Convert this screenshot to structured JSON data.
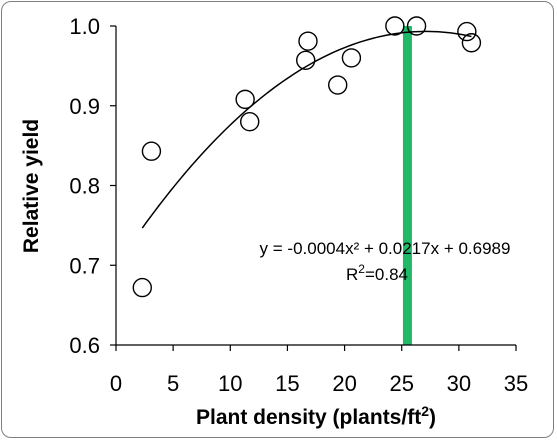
{
  "chart_data": {
    "type": "scatter",
    "xlabel": "Plant density (plants/ft²)",
    "xlabel_main": "Plant density (plants/ft",
    "xlabel_sup": "2",
    "xlabel_end": ")",
    "ylabel": "Relative yield",
    "xlim": [
      0,
      35
    ],
    "ylim": [
      0.6,
      1.0
    ],
    "x_ticks": [
      0,
      5,
      10,
      15,
      20,
      25,
      30,
      35
    ],
    "y_ticks": [
      0.6,
      0.7,
      0.8,
      0.9,
      1.0
    ],
    "x_tick_labels": [
      "0",
      "5",
      "10",
      "15",
      "20",
      "25",
      "30",
      "35"
    ],
    "y_tick_labels": [
      "0.6",
      "0.7",
      "0.8",
      "0.9",
      "1.0"
    ],
    "grid": false,
    "points": [
      {
        "x": 2.3,
        "y": 0.672
      },
      {
        "x": 3.1,
        "y": 0.843
      },
      {
        "x": 11.3,
        "y": 0.908
      },
      {
        "x": 11.7,
        "y": 0.88
      },
      {
        "x": 16.6,
        "y": 0.957
      },
      {
        "x": 16.8,
        "y": 0.981
      },
      {
        "x": 19.4,
        "y": 0.926
      },
      {
        "x": 20.6,
        "y": 0.96
      },
      {
        "x": 24.4,
        "y": 1.0
      },
      {
        "x": 26.3,
        "y": 1.0
      },
      {
        "x": 30.7,
        "y": 0.993
      },
      {
        "x": 31.1,
        "y": 0.979
      }
    ],
    "trendline": {
      "type": "polynomial",
      "a": -0.0004,
      "b": 0.0217,
      "c": 0.6989,
      "x_range": [
        2.3,
        31.1
      ],
      "equation_label": "y = -0.0004x² + 0.0217x + 0.6989",
      "r2_label_main": "R",
      "r2_label_sup": "2",
      "r2_label_end": "=0.84"
    },
    "marker_line": {
      "x": 25.5,
      "color": "#21b968"
    },
    "marker_color": "#000000",
    "line_color": "#000000"
  }
}
